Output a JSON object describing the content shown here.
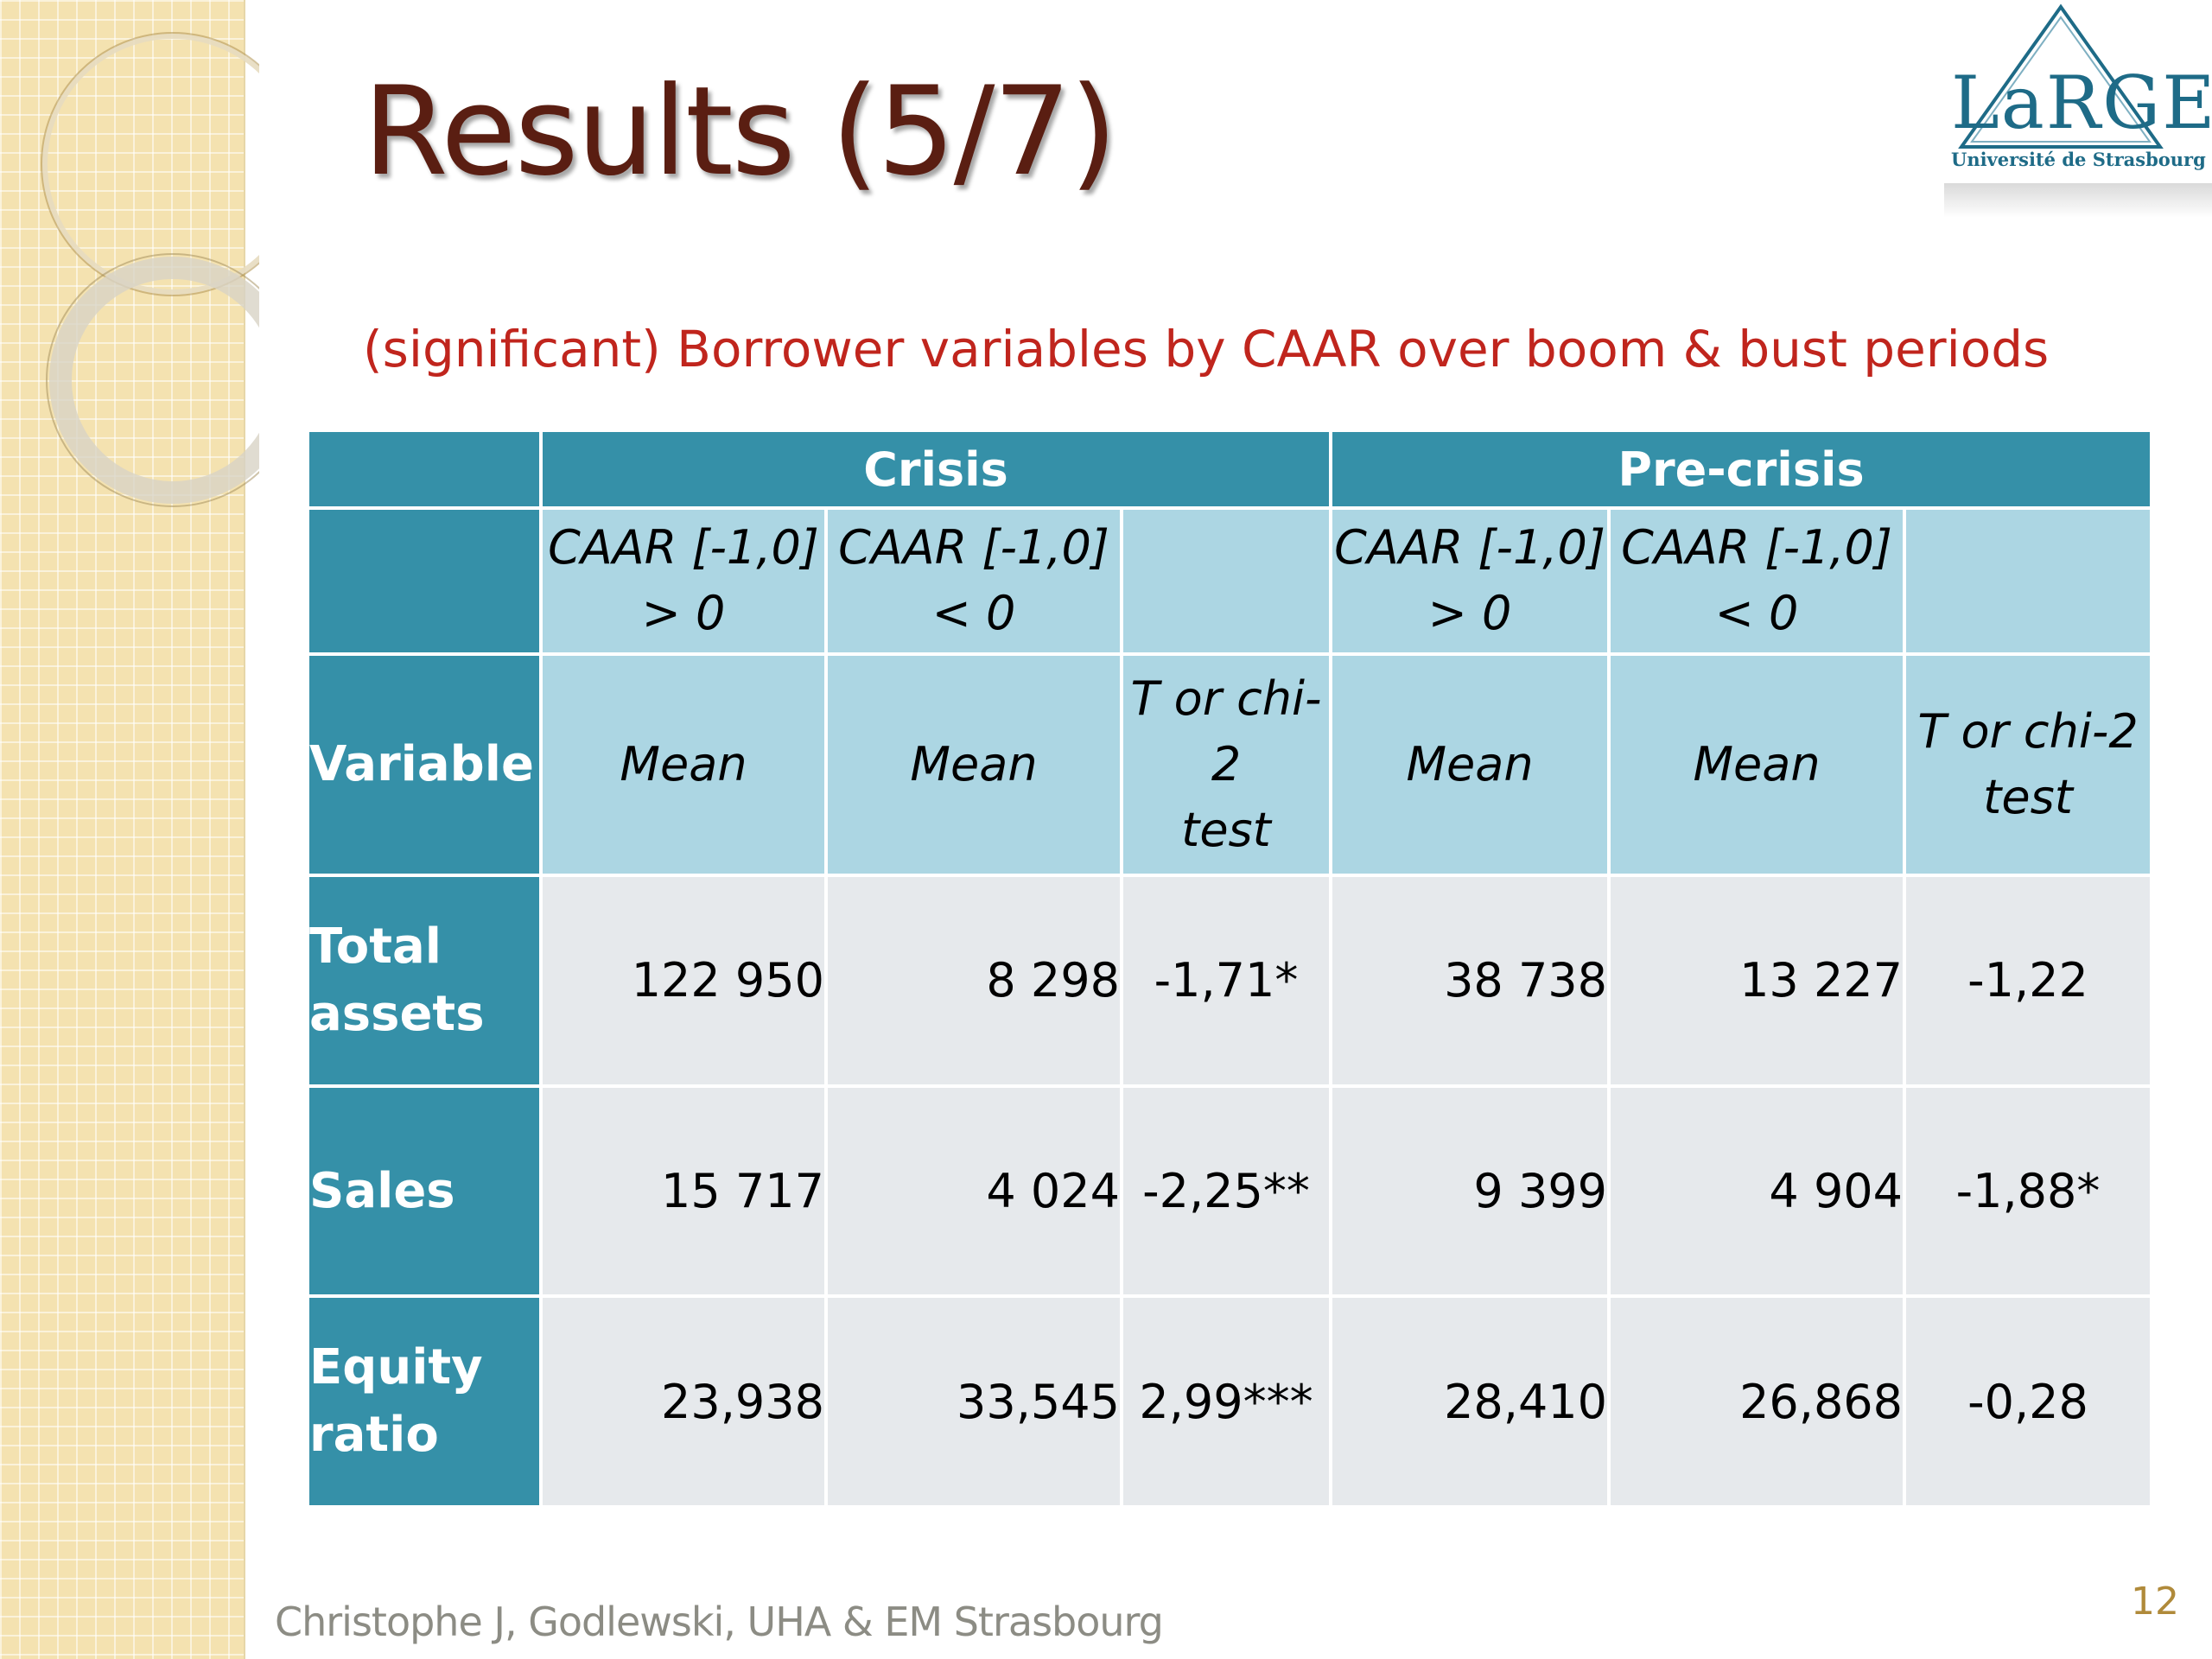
{
  "slide": {
    "title": "Results (5/7)",
    "subtitle": "(significant) Borrower variables by CAAR over boom & bust periods",
    "footer": "Christophe J, Godlewski, UHA & EM Strasbourg",
    "page_number": "12"
  },
  "logo": {
    "text": "LaRGE",
    "subtext": "Université de Strasbourg"
  },
  "table": {
    "groups": [
      "Crisis",
      "Pre-crisis"
    ],
    "subheaders": [
      [
        "CAAR [-1,0]",
        "> 0"
      ],
      [
        "CAAR [-1,0]",
        "< 0"
      ],
      [
        "",
        ""
      ],
      [
        "CAAR [-1,0]",
        "> 0"
      ],
      [
        "CAAR [-1,0]",
        "< 0"
      ],
      [
        "",
        ""
      ]
    ],
    "variable_label": "Variable",
    "stat_headers": [
      [
        "Mean"
      ],
      [
        "Mean"
      ],
      [
        "T or chi-2",
        "test"
      ],
      [
        "Mean"
      ],
      [
        "Mean"
      ],
      [
        "T or chi-2",
        "test"
      ]
    ],
    "rows": [
      {
        "label": [
          "Total",
          "assets"
        ],
        "values": [
          "122 950",
          "8 298",
          "-1,71*",
          "38 738",
          "13 227",
          "-1,22"
        ]
      },
      {
        "label": [
          "Sales"
        ],
        "values": [
          "15 717",
          "4 024",
          "-2,25**",
          "9 399",
          "4 904",
          "-1,88*"
        ]
      },
      {
        "label": [
          "Equity",
          "ratio"
        ],
        "values": [
          "23,938",
          "33,545",
          "2,99***",
          "28,410",
          "26,868",
          "-0,28"
        ]
      }
    ]
  },
  "colors": {
    "header_dark": "#3590a8",
    "header_light": "#acd6e3",
    "cell_bg": "#e6e9ec",
    "title": "#5a1e12",
    "subtitle": "#c0251d"
  }
}
